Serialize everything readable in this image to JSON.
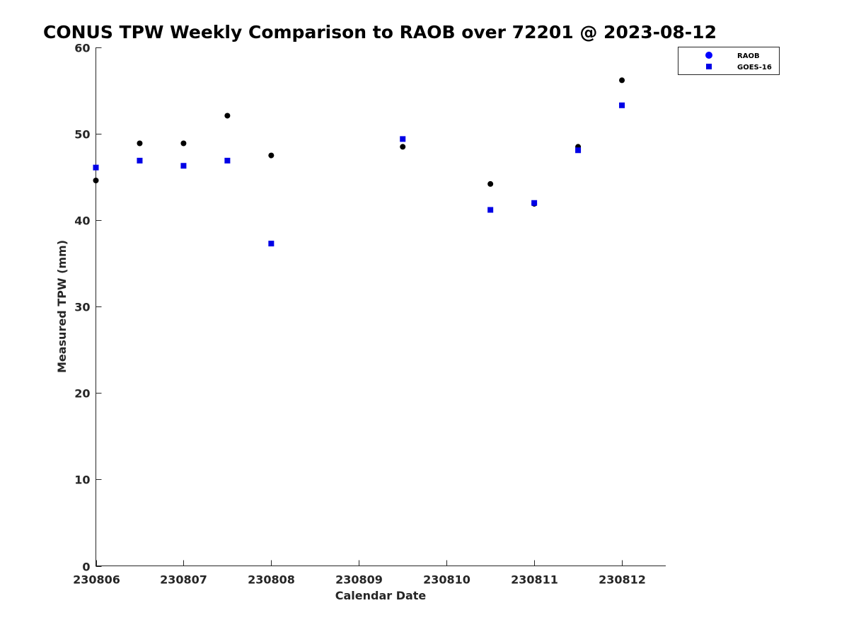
{
  "chart_data": {
    "type": "scatter",
    "title": "CONUS TPW Weekly Comparison to RAOB over 72201 @ 2023-08-12",
    "xlabel": "Calendar Date",
    "ylabel": "Measured TPW (mm)",
    "xlim": [
      230806,
      230812.5
    ],
    "ylim": [
      0,
      60
    ],
    "x_ticks": [
      230806,
      230807,
      230808,
      230809,
      230810,
      230811,
      230812
    ],
    "x_tick_labels": [
      "230806",
      "230807",
      "230808",
      "230809",
      "230810",
      "230811",
      "230812"
    ],
    "y_ticks": [
      0,
      10,
      20,
      30,
      40,
      50,
      60
    ],
    "y_tick_labels": [
      "0",
      "10",
      "20",
      "30",
      "40",
      "50",
      "60"
    ],
    "grid": false,
    "legend_position": "top-right, outside plot",
    "series": [
      {
        "name": "RAOB",
        "marker": "circle",
        "color": "#000000",
        "legend_color": "#0000ff",
        "x": [
          230806,
          230806.5,
          230807,
          230807.5,
          230808,
          230809.5,
          230810.5,
          230811,
          230811.5,
          230812
        ],
        "y": [
          44.6,
          48.9,
          48.9,
          52.1,
          47.5,
          48.5,
          44.2,
          41.9,
          48.5,
          56.2
        ]
      },
      {
        "name": "GOES-16",
        "marker": "square",
        "color": "#0000e6",
        "legend_color": "#0000e6",
        "x": [
          230806,
          230806.5,
          230807,
          230807.5,
          230808,
          230809.5,
          230810.5,
          230811,
          230811.5,
          230812
        ],
        "y": [
          46.1,
          46.9,
          46.3,
          46.9,
          37.3,
          49.4,
          41.2,
          42.0,
          48.1,
          53.3
        ]
      }
    ]
  }
}
